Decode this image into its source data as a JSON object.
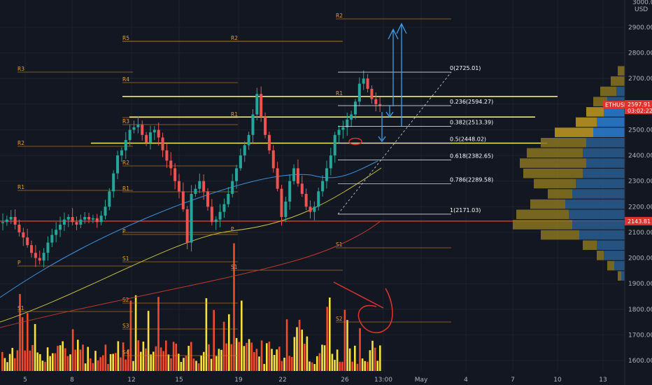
{
  "chart_data": {
    "type": "candlestick",
    "symbol": "ETHUSD",
    "currency": "USD",
    "price_scale": [
      "1600.00",
      "1700.00",
      "1800.00",
      "1900.00",
      "2000.00",
      "2100.00",
      "2200.00",
      "2300.00",
      "2400.00",
      "2500.00",
      "2600.00",
      "2700.00",
      "2800.00",
      "2900.00"
    ],
    "y_range": [
      1560,
      2990
    ],
    "time_labels": [
      "5",
      "8",
      "12",
      "15",
      "19",
      "22",
      "26",
      "13:00",
      "May",
      "4",
      "7",
      "10",
      "13"
    ],
    "current_price": "2597.91",
    "countdown": "03:02:22",
    "support_price_label": "2143.81",
    "fib_levels": [
      {
        "ratio": 0,
        "price": 2725.01,
        "label": "0(2725.01)"
      },
      {
        "ratio": 0.236,
        "price": 2594.27,
        "label": "0.236(2594.27)"
      },
      {
        "ratio": 0.382,
        "price": 2513.39,
        "label": "0.382(2513.39)"
      },
      {
        "ratio": 0.5,
        "price": 2448.02,
        "label": "0.5(2448.02)"
      },
      {
        "ratio": 0.618,
        "price": 2382.65,
        "label": "0.618(2382.65)"
      },
      {
        "ratio": 0.786,
        "price": 2289.58,
        "label": "0.786(2289.58)"
      },
      {
        "ratio": 1,
        "price": 2171.03,
        "label": "1(2171.03)"
      }
    ],
    "yellow_levels": [
      2630,
      2550,
      2448
    ],
    "red_level": 2143.81,
    "pivot_labels": [
      "R5",
      "R4",
      "R3",
      "R2",
      "R1",
      "P",
      "S1",
      "S2",
      "S3",
      "S4",
      "R3",
      "R2",
      "R1",
      "P",
      "R2",
      "R1",
      "P",
      "S1",
      "R2",
      "R1",
      "S1",
      "S2"
    ],
    "price_series": [
      2140,
      2150,
      2160,
      2130,
      2100,
      2080,
      2050,
      2020,
      2000,
      1990,
      2020,
      2060,
      2090,
      2110,
      2130,
      2150,
      2160,
      2140,
      2130,
      2150,
      2160,
      2150,
      2155,
      2140,
      2165,
      2200,
      2260,
      2330,
      2400,
      2420,
      2460,
      2500,
      2510,
      2520,
      2480,
      2450,
      2490,
      2500,
      2470,
      2420,
      2380,
      2350,
      2300,
      2260,
      2190,
      2060,
      2250,
      2270,
      2300,
      2260,
      2200,
      2140,
      2150,
      2180,
      2210,
      2250,
      2300,
      2350,
      2400,
      2440,
      2480,
      2560,
      2640,
      2550,
      2480,
      2420,
      2350,
      2270,
      2160,
      2220,
      2300,
      2350,
      2290,
      2250,
      2200,
      2180,
      2200,
      2260,
      2300,
      2350,
      2400,
      2480,
      2500,
      2510,
      2540,
      2560,
      2610,
      2680,
      2700,
      2660,
      2620,
      2600,
      2598
    ]
  }
}
